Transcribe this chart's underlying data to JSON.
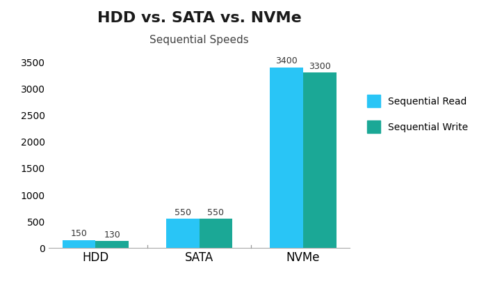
{
  "title": "HDD vs. SATA vs. NVMe",
  "subtitle": "Sequential Speeds",
  "categories": [
    "HDD",
    "SATA",
    "NVMe"
  ],
  "read_values": [
    150,
    550,
    3400
  ],
  "write_values": [
    130,
    550,
    3300
  ],
  "read_color": "#29C5F6",
  "write_color": "#1BA896",
  "ylim": [
    0,
    3500
  ],
  "yticks": [
    0,
    500,
    1000,
    1500,
    2000,
    2500,
    3000,
    3500
  ],
  "bar_width": 0.32,
  "legend_labels": [
    "Sequential Read",
    "Sequential Write"
  ],
  "background_color": "#ffffff",
  "title_fontsize": 16,
  "subtitle_fontsize": 11,
  "tick_fontsize": 10,
  "legend_fontsize": 10,
  "annotation_fontsize": 9,
  "divider_color": "#999999"
}
